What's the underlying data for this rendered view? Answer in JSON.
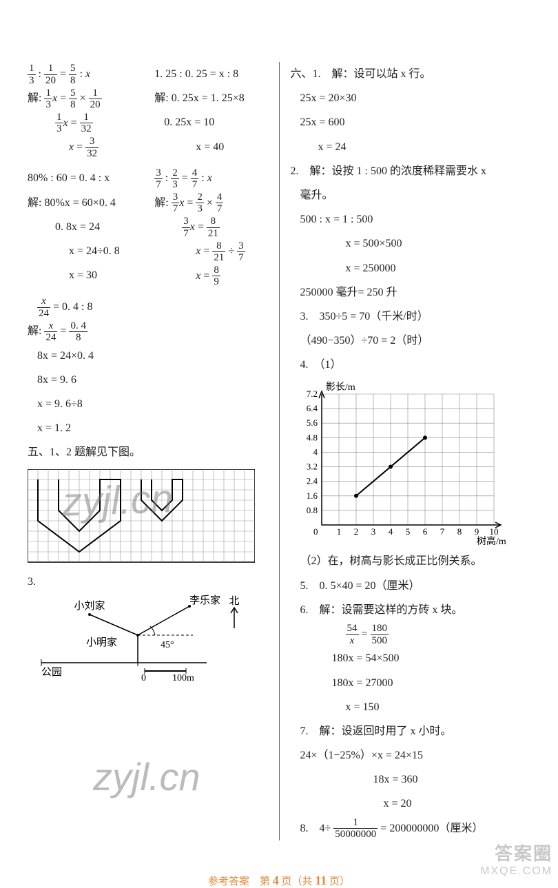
{
  "footer": {
    "label_a": "参考答案　第 ",
    "page": "4",
    "label_b": " 页（共 ",
    "total": "11",
    "label_c": " 页）"
  },
  "watermarks": {
    "w1": "zyjl.cn",
    "w2": "zyjl.cn"
  },
  "corner": {
    "line1": "答案圈",
    "line2": "MXQE.COM"
  },
  "left": {
    "p1a": {
      "head": "1/3 : 1/20 = 5/8 : x",
      "l1": "解: 1/3 x = 5/8 × 1/20",
      "l2": "1/3 x = 1/32",
      "l3": "x = 3/32"
    },
    "p1b": {
      "head": "1. 25 : 0. 25 = x : 8",
      "l1": "解: 0. 25x = 1. 25×8",
      "l2": "0. 25x = 10",
      "l3": "x = 40"
    },
    "p2a": {
      "head": "80% : 60 = 0. 4 : x",
      "l1": "解: 80%x = 60×0. 4",
      "l2": "0. 8x = 24",
      "l3": "x = 24÷0. 8",
      "l4": "x = 30"
    },
    "p2b": {
      "head": "3/7 : 2/3 = 4/7 : x",
      "l1": "解: 3/7 x = 2/3 × 4/7",
      "l2": "3/7 x = 8/21",
      "l3": "x = 8/21 ÷ 3/7",
      "l4": "x = 8/9"
    },
    "p3": {
      "head": "x/24 = 0. 4 : 8",
      "l1": "解: x/24 = 0.4/8",
      "l2": "8x = 24×0. 4",
      "l3": "8x = 9. 6",
      "l4": "x = 9. 6÷8",
      "l5": "x = 1. 2"
    },
    "sec5": "五、1、2 题解见下图。",
    "sec5_3": "3.",
    "map": {
      "xiaoliu": "小刘家",
      "lile": "李乐家",
      "bei": "北",
      "xiaoming": "小明家",
      "angle": "45°",
      "park": "公园",
      "scale_a": "0",
      "scale_b": "100m"
    },
    "grid": {
      "cols": 22,
      "rows": 9,
      "poly1": "1,1 1,5 5,8 9,5 9,1 7,1 7,4 5,6 3,4 3,1",
      "poly2": "11,1 11,3 13,5 15,3 15,1 14,1 14,3 13,4 12,3 12,1"
    }
  },
  "right": {
    "q61_head": "六、1.　解：设可以站 x 行。",
    "q61_l1": "25x = 20×30",
    "q61_l2": "25x = 600",
    "q61_l3": "x = 24",
    "q62_head": "2.　解：设按 1 : 500 的浓度稀释需要水 x",
    "q62_head2": "毫升。",
    "q62_l1": "500 : x = 1 : 500",
    "q62_l2": "x = 500×500",
    "q62_l3": "x = 250000",
    "q62_l4": "250000 毫升= 250 升",
    "q63_l1": "3.　350÷5 = 70（千米/时）",
    "q63_l2": "（490−350）÷70 = 2（时）",
    "q64": "4.　（1）",
    "chart": {
      "ylabel": "影长/m",
      "xlabel": "树高/m",
      "yticks": [
        "0.8",
        "1.6",
        "2.4",
        "3.2",
        "4",
        "4.8",
        "5.6",
        "6.4",
        "7.2"
      ],
      "xticks": [
        "1",
        "2",
        "3",
        "4",
        "5",
        "6",
        "7",
        "8",
        "9",
        "10"
      ],
      "points": [
        [
          2,
          1.6
        ],
        [
          4,
          3.2
        ],
        [
          6,
          4.8
        ]
      ],
      "bg": "#ffffff",
      "grid_color": "#888",
      "line_color": "#000",
      "line_width": 2
    },
    "q64_2": "（2）在，树高与影长成正比例关系。",
    "q65": "5.　0. 5×40 = 20（厘米）",
    "q66_head": "6.　解：设需要这样的方砖 x 块。",
    "q66_l1": "54/x = 180/500",
    "q66_l2": "180x = 54×500",
    "q66_l3": "180x = 27000",
    "q66_l4": "x = 150",
    "q67_head": "7.　解：设返回时用了 x 小时。",
    "q67_l1": "24×（1−25%）×x = 24×15",
    "q67_l2": "18x = 360",
    "q67_l3": "x = 20",
    "q68": "8.　4÷ 1/50000000 = 200000000（厘米）"
  }
}
